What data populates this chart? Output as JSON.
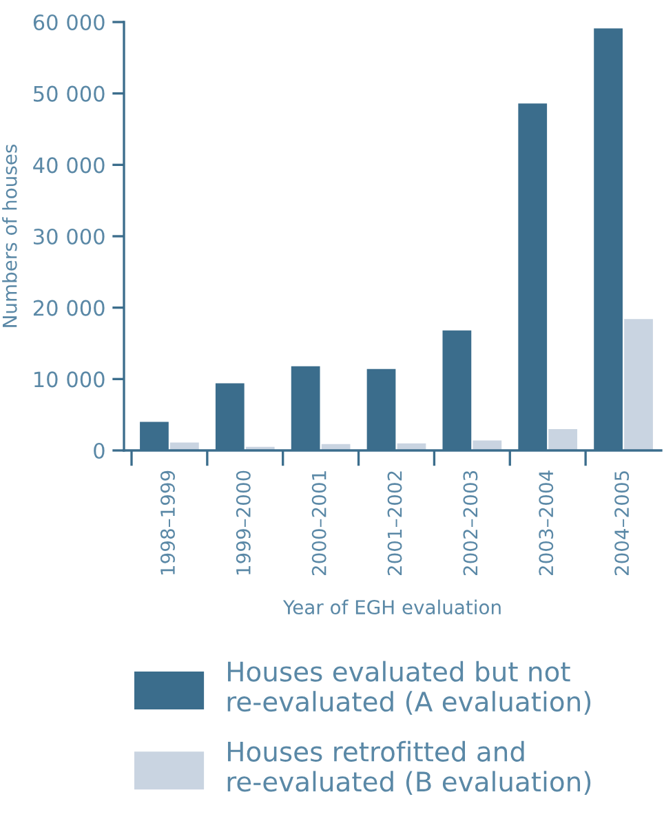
{
  "chart_data": {
    "type": "bar",
    "xlabel": "Year of EGH evaluation",
    "ylabel": "Numbers of houses",
    "categories": [
      "1998–1999",
      "1999–2000",
      "2000–2001",
      "2001–2002",
      "2002–2003",
      "2003–2004",
      "2004–2005"
    ],
    "series": [
      {
        "name": "Houses evaluated but not\nre-evaluated (A evaluation)",
        "color": "#3b6d8c",
        "values": [
          4000,
          9400,
          11800,
          11400,
          16800,
          48600,
          59100
        ]
      },
      {
        "name": "Houses retrofitted and\nre-evaluated (B evaluation)",
        "color": "#c9d4e1",
        "values": [
          1100,
          500,
          900,
          1000,
          1400,
          3000,
          18400
        ]
      }
    ],
    "ylim": [
      0,
      60000
    ],
    "yticks": [
      0,
      {
        "value": 10000,
        "label": "10 000"
      },
      {
        "value": 20000,
        "label": "20 000"
      },
      {
        "value": 30000,
        "label": "30 000"
      },
      {
        "value": 40000,
        "label": "40 000"
      },
      {
        "value": 50000,
        "label": "50 000"
      },
      {
        "value": 60000,
        "label": "60 000"
      }
    ],
    "grid": false,
    "legend": "bottom"
  }
}
